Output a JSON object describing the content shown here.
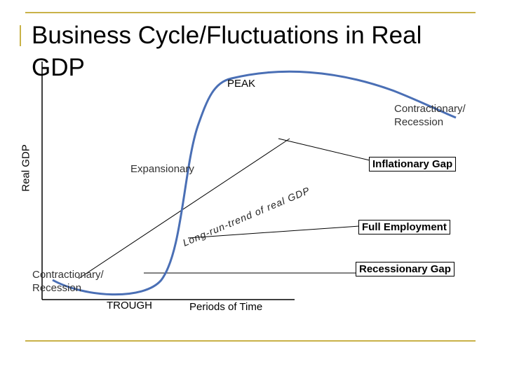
{
  "title": "Business Cycle/Fluctuations in Real GDP",
  "y_axis_label": "Real GDP",
  "x_axis_label": "Periods of Time",
  "labels": {
    "peak": "PEAK",
    "trough": "TROUGH",
    "expansionary": "Expansionary",
    "contraction_top": "Contractionary/ Recession",
    "contraction_bottom": "Contractionary/ Recession",
    "trend": "Long-run-trend of real GDP"
  },
  "callouts": {
    "inflationary_gap": "Inflationary Gap",
    "full_employment": "Full Employment",
    "recessionary_gap": "Recessionary Gap"
  },
  "colors": {
    "curve": "#4a6fb5",
    "accent_rule": "#c9b248",
    "axis": "#000000"
  }
}
